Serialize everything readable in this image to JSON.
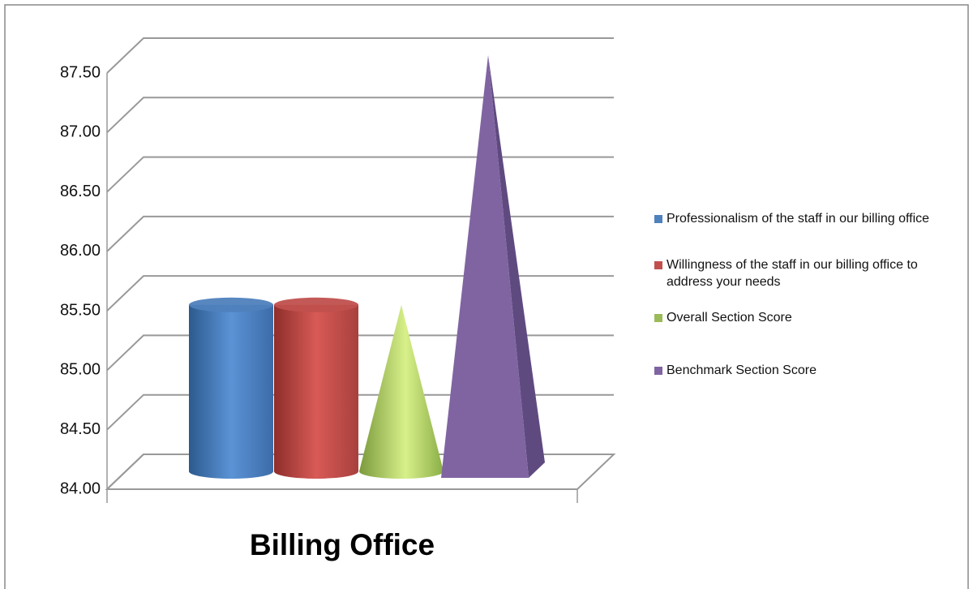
{
  "chart_data": {
    "type": "bar",
    "title": "Billing Office",
    "series": [
      {
        "name": "Professionalism of the staff in our billing office",
        "color": "#4f81bd",
        "values": [
          85.4
        ]
      },
      {
        "name": "Willingness of the staff in our billing office to address your needs",
        "color": "#c0504d",
        "values": [
          85.4
        ]
      },
      {
        "name": "Overall Section  Score",
        "color": "#9bbb59",
        "values": [
          85.4
        ]
      },
      {
        "name": "Benchmark Section  Score",
        "color": "#8064a2",
        "values": [
          87.5
        ]
      }
    ],
    "ylim": [
      84,
      87.5
    ],
    "yticks": [
      {
        "value": 84,
        "label": "84.00"
      },
      {
        "value": 84.5,
        "label": "84.50"
      },
      {
        "value": 85,
        "label": "85.00"
      },
      {
        "value": 85.5,
        "label": "85.50"
      },
      {
        "value": 86,
        "label": "86.00"
      },
      {
        "value": 86.5,
        "label": "86.50"
      },
      {
        "value": 87,
        "label": "87.00"
      },
      {
        "value": 87.5,
        "label": "87.50"
      }
    ],
    "grid": true
  }
}
